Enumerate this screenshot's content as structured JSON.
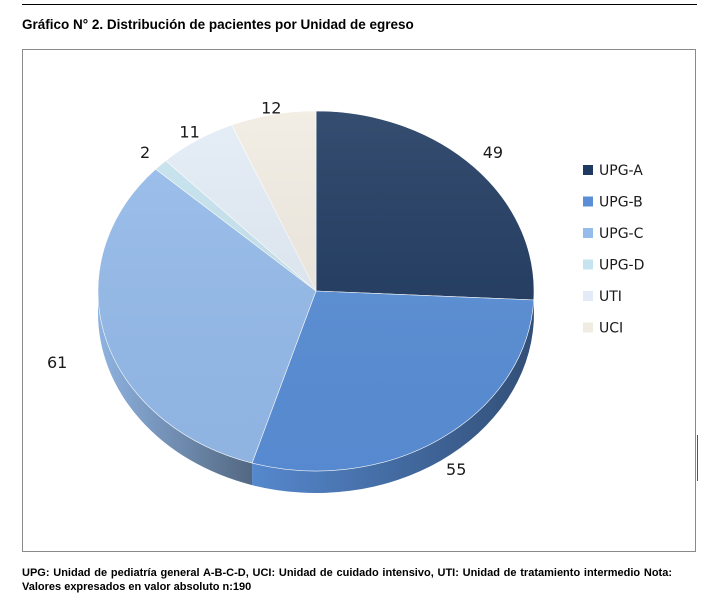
{
  "figure_title": "Gráfico N° 2.  Distribución de pacientes por Unidad de egreso",
  "caption": "UPG: Unidad de pediatría general A-B-C-D, UCI: Unidad de cuidado intensivo, UTI: Unidad de tratamiento intermedio Nota: Valores expresados en valor absoluto n:190",
  "chart_data": {
    "type": "pie",
    "style": "3d",
    "categories": [
      "UPG-A",
      "UPG-B",
      "UPG-C",
      "UPG-D",
      "UTI",
      "UCI"
    ],
    "values": [
      49,
      55,
      61,
      2,
      11,
      12
    ],
    "colors": [
      "#1f3a60",
      "#5a8fd8",
      "#96bcec",
      "#c6e4ef",
      "#e3ecf6",
      "#f1ece2"
    ],
    "data_labels": [
      "49",
      "55",
      "61",
      "2",
      "11",
      "12"
    ],
    "legend": {
      "position": "right",
      "entries": [
        "UPG-A",
        "UPG-B",
        "UPG-C",
        "UPG-D",
        "UTI",
        "UCI"
      ]
    }
  }
}
